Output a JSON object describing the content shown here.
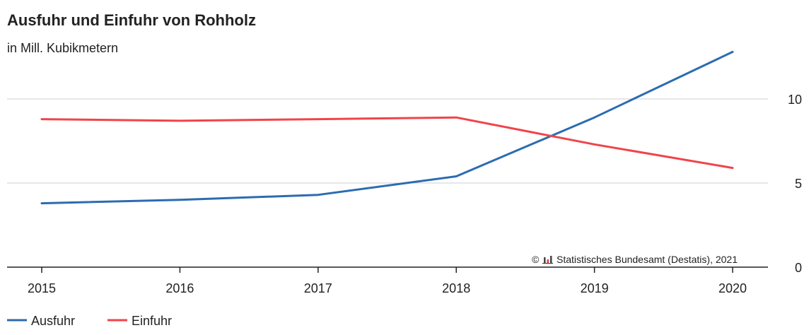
{
  "chart_data": {
    "type": "line",
    "title": "Ausfuhr und Einfuhr von Rohholz",
    "subtitle": "in Mill. Kubikmetern",
    "x": [
      "2015",
      "2016",
      "2017",
      "2018",
      "2019",
      "2020"
    ],
    "series": [
      {
        "name": "Ausfuhr",
        "color": "#2b6cb0",
        "values": [
          3.8,
          4.0,
          4.3,
          5.4,
          8.9,
          12.8
        ]
      },
      {
        "name": "Einfuhr",
        "color": "#f0444a",
        "values": [
          8.8,
          8.7,
          8.8,
          8.9,
          7.3,
          5.9
        ]
      }
    ],
    "ylim": [
      0,
      13
    ],
    "yticks": [
      "0",
      "5",
      "10"
    ],
    "ytick_values": [
      0,
      5,
      10
    ],
    "grid": true,
    "legend_position": "bottom-left",
    "source": "Statistisches Bundesamt (Destatis), 2021",
    "source_prefix": "©"
  }
}
